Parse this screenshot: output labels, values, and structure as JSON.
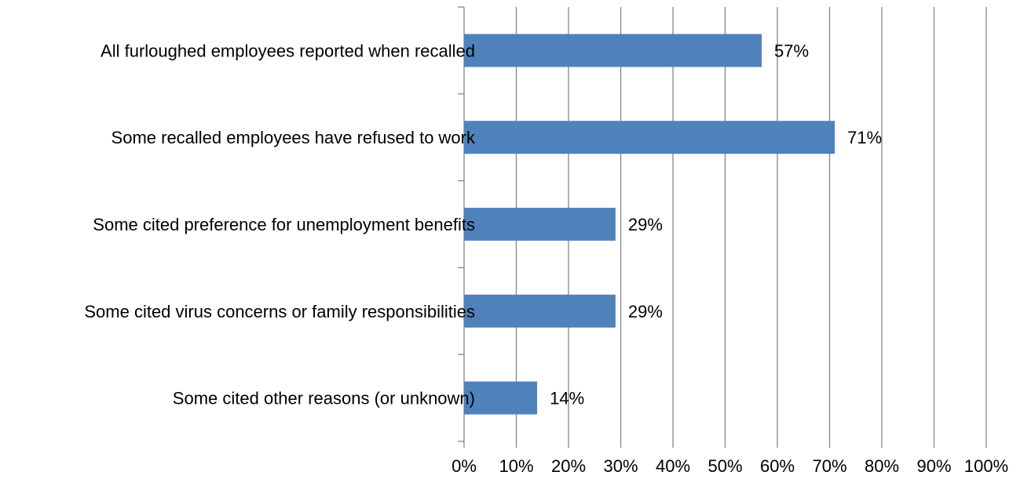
{
  "chart_data": {
    "type": "bar",
    "orientation": "horizontal",
    "categories": [
      "All furloughed employees reported when recalled",
      "Some recalled employees have refused to work",
      "Some cited preference for unemployment benefits",
      "Some cited virus concerns or family responsibilities",
      "Some cited other reasons (or unknown)"
    ],
    "values": [
      57,
      71,
      29,
      29,
      14
    ],
    "data_labels": [
      "57%",
      "71%",
      "29%",
      "29%",
      "14%"
    ],
    "xlim": [
      0,
      100
    ],
    "x_ticks": [
      0,
      10,
      20,
      30,
      40,
      50,
      60,
      70,
      80,
      90,
      100
    ],
    "x_tick_labels": [
      "0%",
      "10%",
      "20%",
      "30%",
      "40%",
      "50%",
      "60%",
      "70%",
      "80%",
      "90%",
      "100%"
    ],
    "title": "",
    "xlabel": "",
    "ylabel": "",
    "grid": "vertical",
    "legend": "none",
    "bar_color": "#4f81bd",
    "grid_color": "#868686"
  }
}
